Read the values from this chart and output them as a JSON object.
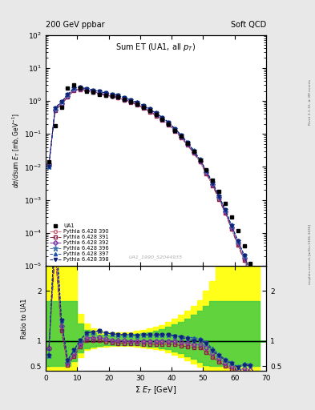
{
  "title_left": "200 GeV ppbar",
  "title_right": "Soft QCD",
  "plot_title": "Sum ET (UA1, all p_{T})",
  "watermark": "UA1_1990_S2044935",
  "xlabel": "Σ E_{T} [GeV]",
  "ylabel_main": "dσ/dsum E_{T} [mb,GeV⁻¹]",
  "ylabel_ratio": "Ratio to UA1",
  "right_label_top": "Rivet 3.1.10, ≥ 3M events",
  "right_label_bot": "mcplots.cern.ch [arXiv:1306.3436]",
  "xlim": [
    0,
    70
  ],
  "ylim_main": [
    1e-05,
    100.0
  ],
  "ylim_ratio": [
    0.4,
    2.5
  ],
  "ratio_yticks": [
    0.5,
    1.0,
    2.0
  ],
  "ua1_x": [
    1,
    3,
    5,
    7,
    9,
    11,
    13,
    15,
    17,
    19,
    21,
    23,
    25,
    27,
    29,
    31,
    33,
    35,
    37,
    39,
    41,
    43,
    45,
    47,
    49,
    51,
    53,
    55,
    57,
    59,
    61,
    63,
    65
  ],
  "ua1_y": [
    0.014,
    0.18,
    0.65,
    2.5,
    3.0,
    2.5,
    2.0,
    1.8,
    1.6,
    1.5,
    1.4,
    1.3,
    1.1,
    0.95,
    0.8,
    0.65,
    0.5,
    0.38,
    0.28,
    0.2,
    0.13,
    0.085,
    0.052,
    0.03,
    0.016,
    0.008,
    0.004,
    0.0018,
    0.0008,
    0.0003,
    0.00012,
    4e-05,
    1.2e-05
  ],
  "lines": [
    {
      "label": "Pythia 6.428 390",
      "color": "#cc6677",
      "linestyle": "-.",
      "marker": "o",
      "fillstyle": "none",
      "x": [
        1,
        3,
        5,
        7,
        9,
        11,
        13,
        15,
        17,
        19,
        21,
        23,
        25,
        27,
        29,
        31,
        33,
        35,
        37,
        39,
        41,
        43,
        45,
        47,
        49,
        51,
        53,
        55,
        57,
        59,
        61,
        63,
        65
      ],
      "y": [
        0.012,
        0.52,
        0.8,
        1.35,
        2.15,
        2.28,
        2.08,
        1.88,
        1.68,
        1.53,
        1.4,
        1.28,
        1.08,
        0.93,
        0.78,
        0.63,
        0.48,
        0.365,
        0.27,
        0.193,
        0.125,
        0.08,
        0.048,
        0.027,
        0.014,
        0.0065,
        0.0028,
        0.0011,
        0.00042,
        0.00014,
        4.5e-05,
        1.6e-05,
        4e-06
      ]
    },
    {
      "label": "Pythia 6.428 391",
      "color": "#882244",
      "linestyle": "-.",
      "marker": "s",
      "fillstyle": "none",
      "x": [
        1,
        3,
        5,
        7,
        9,
        11,
        13,
        15,
        17,
        19,
        21,
        23,
        25,
        27,
        29,
        31,
        33,
        35,
        37,
        39,
        41,
        43,
        45,
        47,
        49,
        51,
        53,
        55,
        57,
        59,
        61,
        63,
        65
      ],
      "y": [
        0.012,
        0.5,
        0.78,
        1.3,
        2.1,
        2.22,
        2.02,
        1.82,
        1.62,
        1.48,
        1.36,
        1.24,
        1.05,
        0.9,
        0.76,
        0.61,
        0.47,
        0.355,
        0.262,
        0.187,
        0.121,
        0.077,
        0.046,
        0.026,
        0.014,
        0.0062,
        0.0027,
        0.00105,
        0.0004,
        0.00013,
        4.2e-05,
        1.5e-05,
        3.8e-06
      ]
    },
    {
      "label": "Pythia 6.428 392",
      "color": "#7733aa",
      "linestyle": "--",
      "marker": "D",
      "fillstyle": "none",
      "x": [
        1,
        3,
        5,
        7,
        9,
        11,
        13,
        15,
        17,
        19,
        21,
        23,
        25,
        27,
        29,
        31,
        33,
        35,
        37,
        39,
        41,
        43,
        45,
        47,
        49,
        51,
        53,
        55,
        57,
        59,
        61,
        63,
        65
      ],
      "y": [
        0.012,
        0.55,
        0.85,
        1.42,
        2.22,
        2.32,
        2.12,
        1.92,
        1.72,
        1.56,
        1.43,
        1.31,
        1.11,
        0.955,
        0.8,
        0.65,
        0.5,
        0.38,
        0.28,
        0.2,
        0.13,
        0.083,
        0.05,
        0.028,
        0.015,
        0.007,
        0.003,
        0.0012,
        0.00045,
        0.00015,
        5e-05,
        1.8e-05,
        5e-06
      ]
    },
    {
      "label": "Pythia 6.428 396",
      "color": "#4477aa",
      "linestyle": "--",
      "marker": "*",
      "fillstyle": "full",
      "x": [
        1,
        3,
        5,
        7,
        9,
        11,
        13,
        15,
        17,
        19,
        21,
        23,
        25,
        27,
        29,
        31,
        33,
        35,
        37,
        39,
        41,
        43,
        45,
        47,
        49,
        51,
        53,
        55,
        57,
        59,
        61,
        63,
        65
      ],
      "y": [
        0.01,
        0.62,
        0.92,
        1.55,
        2.45,
        2.55,
        2.33,
        2.12,
        1.92,
        1.74,
        1.6,
        1.46,
        1.24,
        1.07,
        0.89,
        0.73,
        0.56,
        0.425,
        0.315,
        0.224,
        0.143,
        0.092,
        0.055,
        0.031,
        0.0165,
        0.0077,
        0.0033,
        0.0013,
        0.0005,
        0.00017,
        5.8e-05,
        2.1e-05,
        6.2e-06
      ]
    },
    {
      "label": "Pythia 6.428 397",
      "color": "#2255aa",
      "linestyle": "--",
      "marker": "^",
      "fillstyle": "full",
      "x": [
        1,
        3,
        5,
        7,
        9,
        11,
        13,
        15,
        17,
        19,
        21,
        23,
        25,
        27,
        29,
        31,
        33,
        35,
        37,
        39,
        41,
        43,
        45,
        47,
        49,
        51,
        53,
        55,
        57,
        59,
        61,
        63,
        65
      ],
      "y": [
        0.01,
        0.62,
        0.92,
        1.55,
        2.45,
        2.55,
        2.33,
        2.12,
        1.92,
        1.74,
        1.6,
        1.46,
        1.24,
        1.07,
        0.89,
        0.73,
        0.56,
        0.425,
        0.315,
        0.224,
        0.145,
        0.093,
        0.056,
        0.032,
        0.0168,
        0.0078,
        0.0034,
        0.00132,
        0.00051,
        0.00017,
        5.9e-05,
        2.2e-05,
        6.4e-06
      ]
    },
    {
      "label": "Pythia 6.428 398",
      "color": "#112277",
      "linestyle": "--",
      "marker": "v",
      "fillstyle": "full",
      "x": [
        1,
        3,
        5,
        7,
        9,
        11,
        13,
        15,
        17,
        19,
        21,
        23,
        25,
        27,
        29,
        31,
        33,
        35,
        37,
        39,
        41,
        43,
        45,
        47,
        49,
        51,
        53,
        55,
        57,
        59,
        61,
        63,
        65
      ],
      "y": [
        0.01,
        0.62,
        0.92,
        1.55,
        2.45,
        2.55,
        2.33,
        2.12,
        1.92,
        1.74,
        1.6,
        1.46,
        1.24,
        1.07,
        0.89,
        0.73,
        0.56,
        0.425,
        0.315,
        0.224,
        0.143,
        0.091,
        0.054,
        0.03,
        0.0162,
        0.0076,
        0.0032,
        0.00128,
        0.00049,
        0.000165,
        5.7e-05,
        2.1e-05,
        6e-06
      ]
    }
  ],
  "yellow_band_edges": [
    0,
    2,
    4,
    6,
    8,
    10,
    12,
    14,
    16,
    18,
    20,
    22,
    24,
    26,
    28,
    30,
    32,
    34,
    36,
    38,
    40,
    42,
    44,
    46,
    48,
    50,
    52,
    54,
    56,
    58,
    60,
    62,
    64,
    66,
    68,
    70
  ],
  "yellow_lo": [
    0.4,
    0.4,
    0.4,
    0.4,
    0.4,
    0.68,
    0.82,
    0.85,
    0.88,
    0.89,
    0.9,
    0.9,
    0.9,
    0.9,
    0.88,
    0.87,
    0.86,
    0.84,
    0.82,
    0.78,
    0.73,
    0.68,
    0.62,
    0.55,
    0.48,
    0.4,
    0.4,
    0.4,
    0.4,
    0.4,
    0.4,
    0.4,
    0.4,
    0.4,
    0.4,
    0.4
  ],
  "yellow_hi": [
    2.5,
    2.5,
    2.5,
    2.5,
    2.5,
    1.55,
    1.35,
    1.25,
    1.2,
    1.18,
    1.17,
    1.17,
    1.17,
    1.18,
    1.2,
    1.22,
    1.25,
    1.28,
    1.32,
    1.38,
    1.45,
    1.52,
    1.6,
    1.7,
    1.82,
    2.0,
    2.2,
    2.5,
    2.5,
    2.5,
    2.5,
    2.5,
    2.5,
    2.5,
    2.5,
    2.5
  ],
  "green_lo": [
    0.5,
    0.5,
    0.5,
    0.5,
    0.6,
    0.78,
    0.86,
    0.88,
    0.9,
    0.91,
    0.92,
    0.92,
    0.92,
    0.92,
    0.91,
    0.9,
    0.89,
    0.88,
    0.86,
    0.83,
    0.79,
    0.75,
    0.7,
    0.65,
    0.58,
    0.52,
    0.5,
    0.5,
    0.5,
    0.5,
    0.5,
    0.5,
    0.5,
    0.5,
    0.5,
    0.5
  ],
  "green_hi": [
    1.8,
    1.8,
    1.8,
    1.8,
    1.8,
    1.35,
    1.22,
    1.16,
    1.13,
    1.12,
    1.11,
    1.11,
    1.11,
    1.12,
    1.14,
    1.16,
    1.18,
    1.21,
    1.24,
    1.28,
    1.33,
    1.39,
    1.45,
    1.52,
    1.6,
    1.7,
    1.8,
    1.8,
    1.8,
    1.8,
    1.8,
    1.8,
    1.8,
    1.8,
    1.8,
    1.8
  ],
  "bg_color": "#e8e8e8",
  "plot_bg": "#ffffff"
}
